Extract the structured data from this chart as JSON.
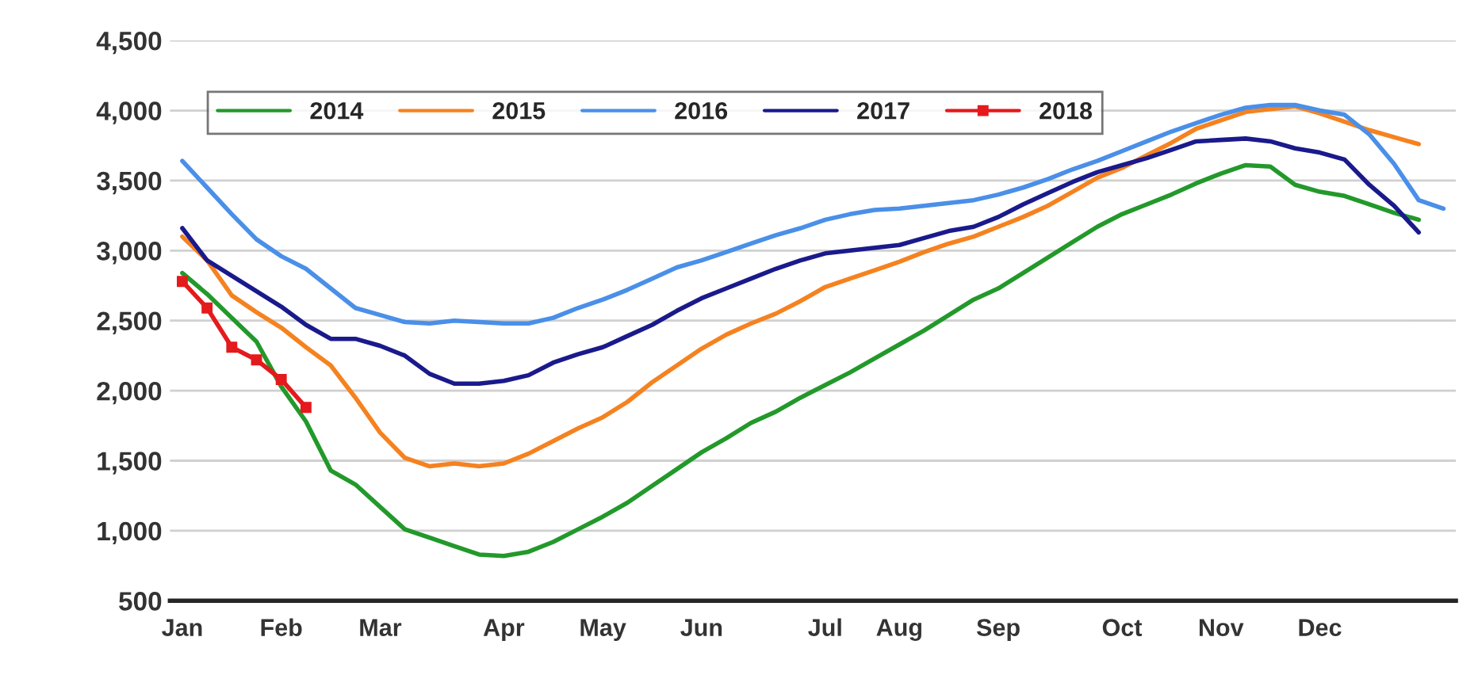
{
  "chart_data": {
    "type": "line",
    "ylim": [
      500,
      4500
    ],
    "yticks": [
      {
        "value": 500,
        "label": "500"
      },
      {
        "value": 1000,
        "label": "1,000"
      },
      {
        "value": 1500,
        "label": "1,500"
      },
      {
        "value": 2000,
        "label": "2,000"
      },
      {
        "value": 2500,
        "label": "2,500"
      },
      {
        "value": 3000,
        "label": "3,000"
      },
      {
        "value": 3500,
        "label": "3,500"
      },
      {
        "value": 4000,
        "label": "4,000"
      },
      {
        "value": 4500,
        "label": "4,500"
      }
    ],
    "categories": [
      "Jan",
      null,
      null,
      null,
      "Feb",
      null,
      null,
      null,
      "Mar",
      null,
      null,
      null,
      null,
      "Apr",
      null,
      null,
      null,
      "May",
      null,
      null,
      null,
      "Jun",
      null,
      null,
      null,
      null,
      "Jul",
      null,
      null,
      "Aug",
      null,
      null,
      null,
      "Sep",
      null,
      null,
      null,
      null,
      "Oct",
      null,
      null,
      null,
      "Nov",
      null,
      null,
      null,
      "Dec",
      null,
      null,
      null,
      null,
      null
    ],
    "grid": "y",
    "legend": "top left",
    "line_style": "solid",
    "series": [
      {
        "name": "2014",
        "color": "#22992a",
        "marker": "none",
        "values": [
          2840,
          2690,
          2520,
          2350,
          2030,
          1780,
          1430,
          1330,
          1170,
          1010,
          950,
          890,
          830,
          820,
          850,
          920,
          1010,
          1100,
          1200,
          1320,
          1440,
          1560,
          1660,
          1770,
          1850,
          1950,
          2040,
          2130,
          2230,
          2330,
          2430,
          2540,
          2650,
          2730,
          2840,
          2950,
          3060,
          3170,
          3260,
          3330,
          3400,
          3480,
          3550,
          3610,
          3600,
          3470,
          3420,
          3390,
          3330,
          3270,
          3220,
          null
        ]
      },
      {
        "name": "2015",
        "color": "#f58220",
        "marker": "none",
        "values": [
          3100,
          2930,
          2680,
          2560,
          2450,
          2310,
          2180,
          1950,
          1700,
          1520,
          1460,
          1480,
          1460,
          1480,
          1550,
          1640,
          1730,
          1810,
          1920,
          2060,
          2180,
          2300,
          2400,
          2480,
          2550,
          2640,
          2740,
          2800,
          2860,
          2920,
          2990,
          3050,
          3100,
          3170,
          3240,
          3320,
          3420,
          3520,
          3590,
          3680,
          3770,
          3870,
          3930,
          3990,
          4010,
          4030,
          3980,
          3920,
          3860,
          3810,
          3760,
          null
        ]
      },
      {
        "name": "2016",
        "color": "#4a8fe8",
        "marker": "none",
        "values": [
          3640,
          3450,
          3260,
          3080,
          2960,
          2870,
          2730,
          2590,
          2540,
          2490,
          2480,
          2500,
          2490,
          2480,
          2480,
          2520,
          2590,
          2650,
          2720,
          2800,
          2880,
          2930,
          2990,
          3050,
          3110,
          3160,
          3220,
          3260,
          3290,
          3300,
          3320,
          3340,
          3360,
          3400,
          3450,
          3510,
          3580,
          3640,
          3710,
          3780,
          3850,
          3910,
          3970,
          4020,
          4040,
          4040,
          4000,
          3970,
          3830,
          3620,
          3360,
          3300
        ]
      },
      {
        "name": "2017",
        "color": "#1a1a8c",
        "marker": "none",
        "values": [
          3160,
          2930,
          2820,
          2710,
          2600,
          2470,
          2370,
          2370,
          2320,
          2250,
          2120,
          2050,
          2050,
          2070,
          2110,
          2200,
          2260,
          2310,
          2390,
          2470,
          2570,
          2660,
          2730,
          2800,
          2870,
          2930,
          2980,
          3000,
          3020,
          3040,
          3090,
          3140,
          3170,
          3240,
          3330,
          3410,
          3490,
          3560,
          3610,
          3660,
          3720,
          3780,
          3790,
          3800,
          3780,
          3730,
          3700,
          3650,
          3470,
          3320,
          3130,
          null
        ]
      },
      {
        "name": "2018",
        "color": "#e41a1c",
        "marker": "square",
        "values": [
          2780,
          2590,
          2310,
          2220,
          2080,
          1880,
          null,
          null,
          null,
          null,
          null,
          null,
          null,
          null,
          null,
          null,
          null,
          null,
          null,
          null,
          null,
          null,
          null,
          null,
          null,
          null,
          null,
          null,
          null,
          null,
          null,
          null,
          null,
          null,
          null,
          null,
          null,
          null,
          null,
          null,
          null,
          null,
          null,
          null,
          null,
          null,
          null,
          null,
          null,
          null,
          null,
          null
        ]
      }
    ]
  }
}
